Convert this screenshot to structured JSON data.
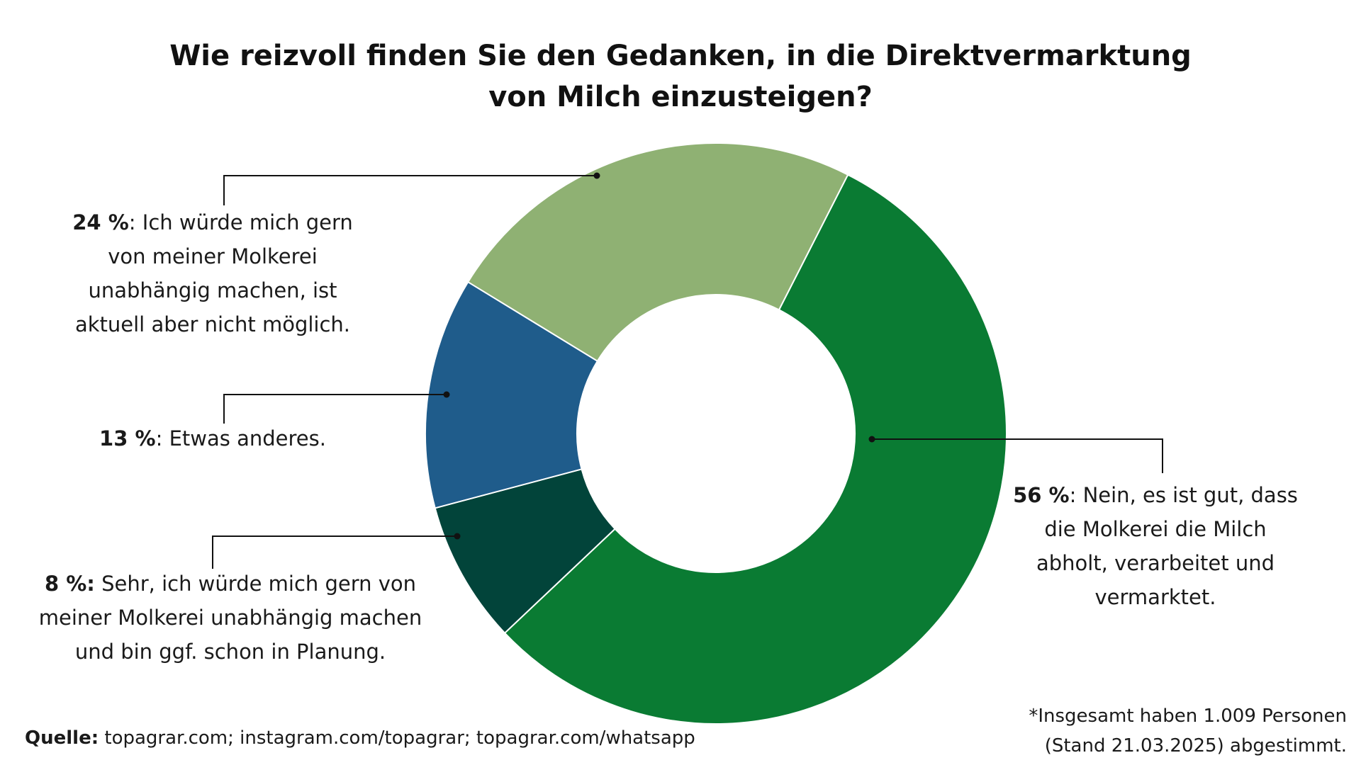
{
  "chart_data": {
    "type": "pie",
    "title": "Wie reizvoll finden Sie den Gedanken, in die Direktvermarktung von Milch einzusteigen?",
    "title_lines": [
      "Wie reizvoll finden Sie den Gedanken, in die Direktvermarktung",
      "von Milch einzusteigen?"
    ],
    "slices": [
      {
        "id": "56",
        "value": 56,
        "value_label": "56 %",
        "label": "Nein, es ist gut, dass die Molkerei die Milch abholt, verarbeitet und vermarktet.",
        "color": "#0a7b33"
      },
      {
        "id": "8",
        "value": 8,
        "value_label": "8 %:",
        "label": "Sehr, ich würde mich gern von meiner Molkerei unabhängig machen und bin ggf. schon in Planung.",
        "color": "#02443a"
      },
      {
        "id": "13",
        "value": 13,
        "value_label": "13 %",
        "label": "Etwas anderes.",
        "color": "#1f5c8b"
      },
      {
        "id": "24",
        "value": 24,
        "value_label": "24 %",
        "label": "Ich würde mich gern von meiner Molkerei unabhängig machen, ist aktuell aber nicht möglich.",
        "color": "#8fb173"
      }
    ]
  },
  "source": {
    "label": "Quelle:",
    "text": "topagrar.com; instagram.com/topagrar; topagrar.com/whatsapp"
  },
  "footnote": {
    "line1": "*Insgesamt haben 1.009 Personen",
    "line2": "(Stand 21.03.2025) abgestimmt."
  }
}
